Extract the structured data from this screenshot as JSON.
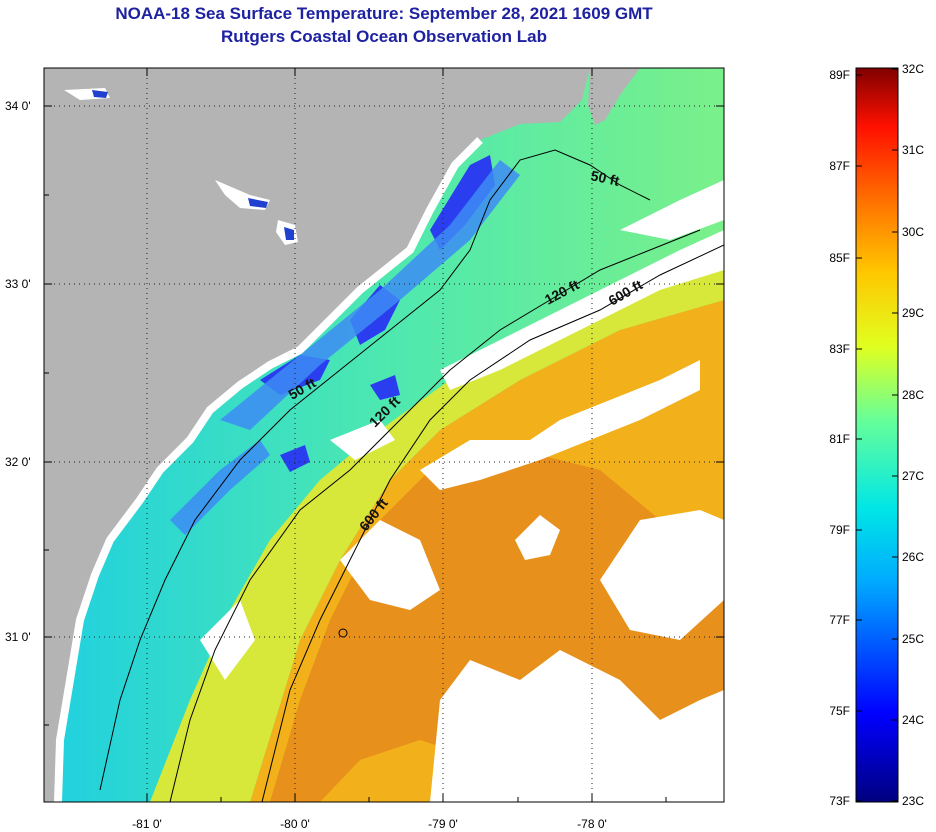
{
  "title": {
    "line1": "NOAA-18 Sea Surface Temperature:  September 28, 2021 1609 GMT",
    "line2": "Rutgers Coastal Ocean Observation Lab"
  },
  "axes": {
    "lat_labels": [
      "34 0'",
      "33 0'",
      "32 0'",
      "31 0'"
    ],
    "lon_labels": [
      "-81 0'",
      "-80 0'",
      "-79 0'",
      "-78 0'"
    ]
  },
  "contours": {
    "c50a": "50 ft",
    "c50b": "50 ft",
    "c120a": "120 ft",
    "c120b": "120 ft",
    "c600a": "600 ft",
    "c600b": "600 ft"
  },
  "colorbar": {
    "fahrenheit": [
      "89F",
      "87F",
      "85F",
      "83F",
      "81F",
      "79F",
      "77F",
      "75F",
      "73F"
    ],
    "celsius": [
      "32C",
      "31C",
      "30C",
      "29C",
      "28C",
      "27C",
      "26C",
      "25C",
      "24C",
      "23C"
    ]
  },
  "colors": {
    "land": "#b4b4b4",
    "title": "#1e22a0"
  }
}
